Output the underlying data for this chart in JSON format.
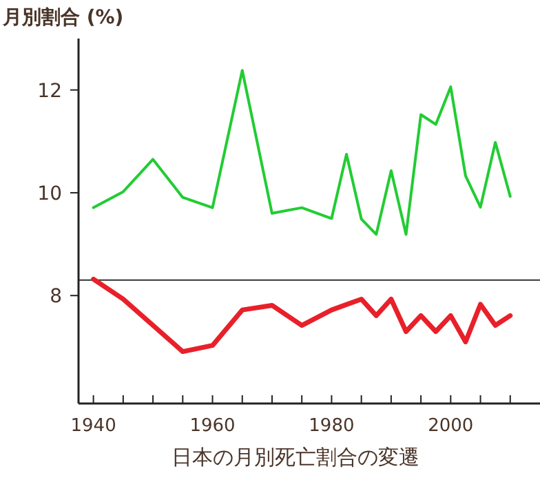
{
  "chart_data": {
    "type": "line",
    "title": "日本の月別死亡割合の変遷",
    "ylabel": "月別割合 (%)",
    "xlim": [
      1937.5,
      2015
    ],
    "ylim": [
      5.9,
      13.0
    ],
    "xticks": [
      1940,
      {
        "value": 1945,
        "label": null
      },
      {
        "value": 1950,
        "label": null
      },
      {
        "value": 1955,
        "label": null
      },
      1960,
      {
        "value": 1965,
        "label": null
      },
      {
        "value": 1970,
        "label": null
      },
      {
        "value": 1975,
        "label": null
      },
      1980,
      {
        "value": 1985,
        "label": null
      },
      {
        "value": 1990,
        "label": null
      },
      {
        "value": 1995,
        "label": null
      },
      2000,
      {
        "value": 2005,
        "label": null
      },
      {
        "value": 2010,
        "label": null
      }
    ],
    "yticks": [
      8,
      10,
      12
    ],
    "marker": "none",
    "line_style": "solid",
    "series": [
      {
        "color": "#22cc33",
        "x": [
          1940,
          1945,
          1950,
          1955,
          1960,
          1965,
          1970,
          1975,
          1980,
          1982.5,
          1985,
          1987.5,
          1990,
          1992.5,
          1995,
          1997.5,
          2000,
          2002.5,
          2005,
          2007.5,
          2010
        ],
        "values": [
          9.71,
          10.02,
          10.65,
          9.91,
          9.71,
          12.38,
          9.6,
          9.71,
          9.5,
          10.75,
          9.49,
          9.19,
          10.43,
          9.19,
          11.52,
          11.33,
          12.06,
          10.33,
          9.72,
          10.98,
          9.93
        ]
      },
      {
        "color": "#e8202a",
        "x": [
          1940,
          1945,
          1955,
          1960,
          1965,
          1970,
          1975,
          1980,
          1985,
          1987.5,
          1990,
          1992.5,
          1995,
          1997.5,
          2000,
          2002.5,
          2005,
          2007.5,
          2010
        ],
        "values": [
          8.32,
          7.93,
          6.91,
          7.03,
          7.72,
          7.81,
          7.42,
          7.72,
          7.93,
          7.61,
          7.93,
          7.3,
          7.61,
          7.3,
          7.61,
          7.1,
          7.83,
          7.42,
          7.61
        ]
      }
    ],
    "ref_lines": [
      {
        "axis": "y",
        "value": 8.3,
        "color": "#333333"
      }
    ]
  }
}
